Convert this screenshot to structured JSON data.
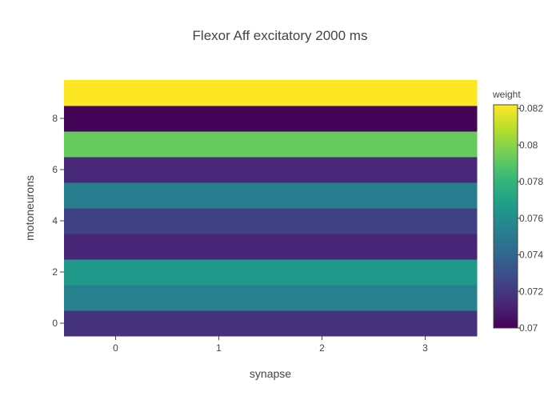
{
  "chart_data": {
    "type": "heatmap",
    "title": "Flexor Aff excitatory 2000 ms",
    "xlabel": "synapse",
    "ylabel": "motoneurons",
    "x": [
      0,
      1,
      2,
      3
    ],
    "y": [
      0,
      1,
      2,
      3,
      4,
      5,
      6,
      7,
      8,
      9
    ],
    "xlim": [
      -0.5,
      3.5
    ],
    "ylim": [
      -0.5,
      9.5
    ],
    "x_ticks": [
      "0",
      "1",
      "2",
      "3"
    ],
    "y_ticks": [
      "0",
      "2",
      "4",
      "6",
      "8"
    ],
    "z": [
      [
        0.0718,
        0.0718,
        0.0718,
        0.0718
      ],
      [
        0.0753,
        0.0753,
        0.0753,
        0.0753
      ],
      [
        0.0765,
        0.0765,
        0.0765,
        0.0765
      ],
      [
        0.0713,
        0.0713,
        0.0713,
        0.0713
      ],
      [
        0.0724,
        0.0724,
        0.0724,
        0.0724
      ],
      [
        0.0752,
        0.0752,
        0.0752,
        0.0752
      ],
      [
        0.0714,
        0.0714,
        0.0714,
        0.0714
      ],
      [
        0.0793,
        0.0793,
        0.0793,
        0.0793
      ],
      [
        0.0701,
        0.0701,
        0.0701,
        0.0701
      ],
      [
        0.0822,
        0.0822,
        0.0822,
        0.0822
      ]
    ],
    "colorbar": {
      "title": "weight",
      "zmin": 0.07,
      "zmax": 0.0822,
      "ticks": [
        0.07,
        0.072,
        0.074,
        0.076,
        0.078,
        0.08,
        0.082
      ],
      "tick_labels": [
        "0.07",
        "0.072",
        "0.074",
        "0.076",
        "0.078",
        "0.08",
        "0.082"
      ]
    },
    "colorscale": [
      "#440154",
      "#482878",
      "#3e4989",
      "#31688e",
      "#26828e",
      "#1f9e89",
      "#35b779",
      "#6ece58",
      "#b5de2b",
      "#fde725"
    ],
    "grid": false
  }
}
